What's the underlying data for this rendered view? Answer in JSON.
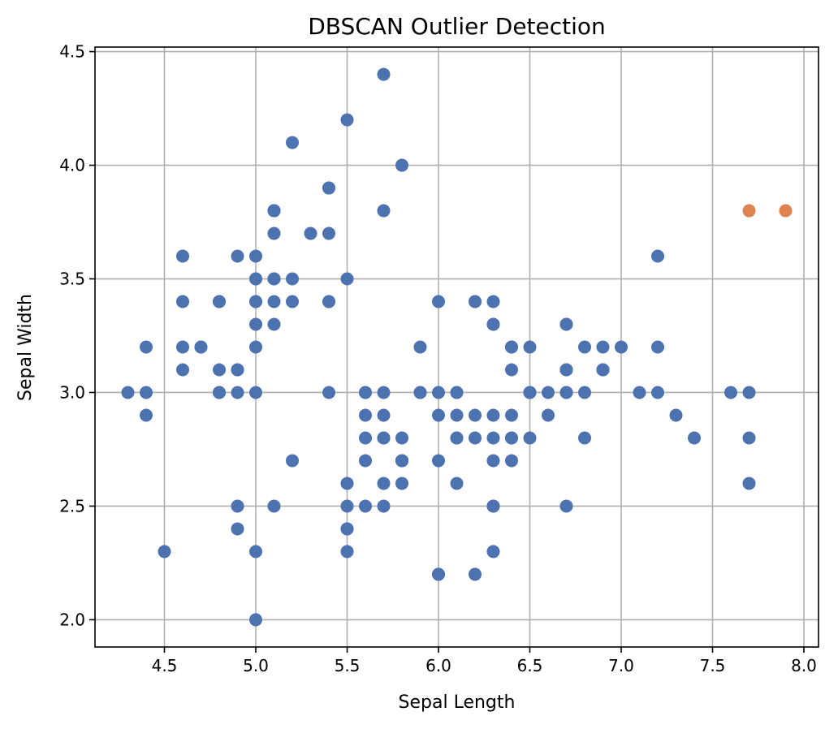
{
  "chart_data": {
    "type": "scatter",
    "title": "DBSCAN Outlier Detection",
    "xlabel": "Sepal Length",
    "ylabel": "Sepal Width",
    "xlim": [
      4.12,
      8.08
    ],
    "ylim": [
      1.88,
      4.52
    ],
    "xticks": [
      "4.5",
      "5.0",
      "5.5",
      "6.0",
      "6.5",
      "7.0",
      "7.5",
      "8.0"
    ],
    "yticks": [
      "2.0",
      "2.5",
      "3.0",
      "3.5",
      "4.0",
      "4.5"
    ],
    "grid": true,
    "legend": "none",
    "colors": {
      "cluster": "#4c72b0",
      "outlier": "#dd8452"
    },
    "series": [
      {
        "group": "cluster",
        "points": [
          [
            5.1,
            3.5
          ],
          [
            4.9,
            3.0
          ],
          [
            4.7,
            3.2
          ],
          [
            4.6,
            3.1
          ],
          [
            5.0,
            3.6
          ],
          [
            5.4,
            3.9
          ],
          [
            4.6,
            3.4
          ],
          [
            5.0,
            3.4
          ],
          [
            4.4,
            2.9
          ],
          [
            4.9,
            3.1
          ],
          [
            5.4,
            3.7
          ],
          [
            4.8,
            3.4
          ],
          [
            4.8,
            3.0
          ],
          [
            4.3,
            3.0
          ],
          [
            5.8,
            4.0
          ],
          [
            5.7,
            4.4
          ],
          [
            5.4,
            3.9
          ],
          [
            5.1,
            3.5
          ],
          [
            5.7,
            3.8
          ],
          [
            5.1,
            3.8
          ],
          [
            5.4,
            3.4
          ],
          [
            5.1,
            3.7
          ],
          [
            4.6,
            3.6
          ],
          [
            5.1,
            3.3
          ],
          [
            4.8,
            3.4
          ],
          [
            5.0,
            3.0
          ],
          [
            5.0,
            3.4
          ],
          [
            5.2,
            3.5
          ],
          [
            5.2,
            3.4
          ],
          [
            4.7,
            3.2
          ],
          [
            4.8,
            3.1
          ],
          [
            5.4,
            3.4
          ],
          [
            5.2,
            4.1
          ],
          [
            5.5,
            4.2
          ],
          [
            4.9,
            3.1
          ],
          [
            5.0,
            3.2
          ],
          [
            5.5,
            3.5
          ],
          [
            4.9,
            3.6
          ],
          [
            4.4,
            3.0
          ],
          [
            5.1,
            3.4
          ],
          [
            5.0,
            3.5
          ],
          [
            4.5,
            2.3
          ],
          [
            4.4,
            3.2
          ],
          [
            5.0,
            3.5
          ],
          [
            5.1,
            3.8
          ],
          [
            4.8,
            3.0
          ],
          [
            5.1,
            3.8
          ],
          [
            4.6,
            3.2
          ],
          [
            5.3,
            3.7
          ],
          [
            5.0,
            3.3
          ],
          [
            7.0,
            3.2
          ],
          [
            6.4,
            3.2
          ],
          [
            6.9,
            3.1
          ],
          [
            5.5,
            2.3
          ],
          [
            6.5,
            2.8
          ],
          [
            5.7,
            2.8
          ],
          [
            6.3,
            3.3
          ],
          [
            4.9,
            2.4
          ],
          [
            6.6,
            2.9
          ],
          [
            5.2,
            2.7
          ],
          [
            5.0,
            2.0
          ],
          [
            5.9,
            3.0
          ],
          [
            6.0,
            2.2
          ],
          [
            6.1,
            2.9
          ],
          [
            5.6,
            2.9
          ],
          [
            6.7,
            3.1
          ],
          [
            5.6,
            3.0
          ],
          [
            5.8,
            2.7
          ],
          [
            6.2,
            2.2
          ],
          [
            5.6,
            2.5
          ],
          [
            5.9,
            3.2
          ],
          [
            6.1,
            2.8
          ],
          [
            6.3,
            2.5
          ],
          [
            6.1,
            2.8
          ],
          [
            6.4,
            2.9
          ],
          [
            6.6,
            3.0
          ],
          [
            6.8,
            2.8
          ],
          [
            6.7,
            3.0
          ],
          [
            6.0,
            2.9
          ],
          [
            5.7,
            2.6
          ],
          [
            5.5,
            2.4
          ],
          [
            5.5,
            2.4
          ],
          [
            5.8,
            2.7
          ],
          [
            6.0,
            2.7
          ],
          [
            5.4,
            3.0
          ],
          [
            6.0,
            3.4
          ],
          [
            6.7,
            3.1
          ],
          [
            6.3,
            2.3
          ],
          [
            5.6,
            3.0
          ],
          [
            5.5,
            2.5
          ],
          [
            5.5,
            2.6
          ],
          [
            6.1,
            3.0
          ],
          [
            5.8,
            2.6
          ],
          [
            5.0,
            2.3
          ],
          [
            5.6,
            2.7
          ],
          [
            5.7,
            3.0
          ],
          [
            5.7,
            2.9
          ],
          [
            6.2,
            2.9
          ],
          [
            5.1,
            2.5
          ],
          [
            5.7,
            2.8
          ],
          [
            6.3,
            3.3
          ],
          [
            5.8,
            2.7
          ],
          [
            7.1,
            3.0
          ],
          [
            6.3,
            2.9
          ],
          [
            6.5,
            3.0
          ],
          [
            7.6,
            3.0
          ],
          [
            4.9,
            2.5
          ],
          [
            7.3,
            2.9
          ],
          [
            6.7,
            2.5
          ],
          [
            7.2,
            3.6
          ],
          [
            6.5,
            3.2
          ],
          [
            6.4,
            2.7
          ],
          [
            6.8,
            3.0
          ],
          [
            5.7,
            2.5
          ],
          [
            5.8,
            2.8
          ],
          [
            6.4,
            3.2
          ],
          [
            6.5,
            3.0
          ],
          [
            7.7,
            2.6
          ],
          [
            6.0,
            2.2
          ],
          [
            6.9,
            3.2
          ],
          [
            5.6,
            2.8
          ],
          [
            7.7,
            2.8
          ],
          [
            6.3,
            2.7
          ],
          [
            6.7,
            3.3
          ],
          [
            7.2,
            3.2
          ],
          [
            6.2,
            2.8
          ],
          [
            6.1,
            3.0
          ],
          [
            6.4,
            2.8
          ],
          [
            7.2,
            3.0
          ],
          [
            7.4,
            2.8
          ],
          [
            6.4,
            2.8
          ],
          [
            6.3,
            2.8
          ],
          [
            6.1,
            2.6
          ],
          [
            7.7,
            3.0
          ],
          [
            6.3,
            3.4
          ],
          [
            6.4,
            3.1
          ],
          [
            6.0,
            3.0
          ],
          [
            6.9,
            3.1
          ],
          [
            6.7,
            3.1
          ],
          [
            6.9,
            3.1
          ],
          [
            5.8,
            2.7
          ],
          [
            6.8,
            3.2
          ],
          [
            6.7,
            3.3
          ],
          [
            6.7,
            3.0
          ],
          [
            6.3,
            2.5
          ],
          [
            6.5,
            3.0
          ],
          [
            6.2,
            3.4
          ],
          [
            5.9,
            3.0
          ],
          [
            6.2,
            3.4
          ]
        ]
      },
      {
        "group": "outlier",
        "points": [
          [
            7.7,
            3.8
          ],
          [
            7.9,
            3.8
          ]
        ]
      }
    ]
  }
}
